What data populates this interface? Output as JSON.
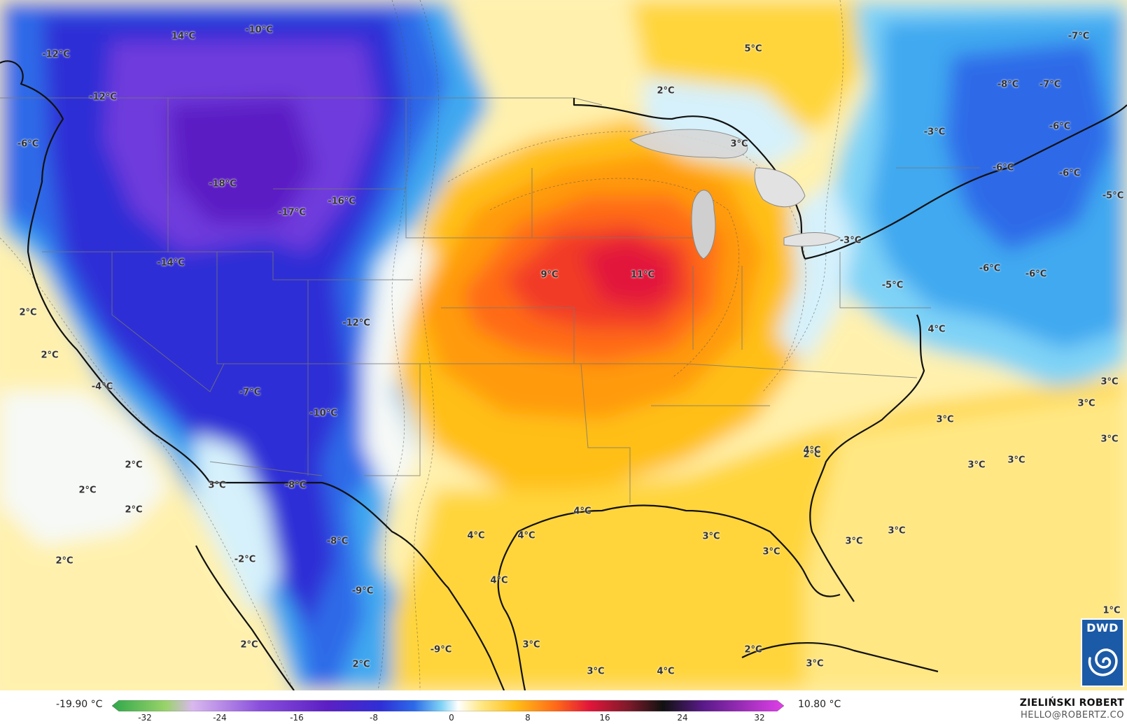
{
  "map": {
    "temperature_labels": [
      "14°C",
      "-10°C",
      "-12°C",
      "-12°C",
      "-6°C",
      "-18°C",
      "-16°C",
      "-17°C",
      "-14°C",
      "-12°C",
      "2°C",
      "2°C",
      "-4°C",
      "-7°C",
      "-10°C",
      "2°C",
      "2°C",
      "3°C",
      "-8°C",
      "2°C",
      "-8°C",
      "2°C",
      "-2°C",
      "-9°C",
      "-9°C",
      "2°C",
      "2°C",
      "5°C",
      "2°C",
      "3°C",
      "9°C",
      "11°C",
      "4°C",
      "4°C",
      "4°C",
      "4°C",
      "3°C",
      "3°C",
      "3°C",
      "3°C",
      "4°C",
      "-7°C",
      "-8°C",
      "-7°C",
      "-3°C",
      "-6°C",
      "-6°C",
      "-6°C",
      "-5°C",
      "-3°C",
      "-6°C",
      "-6°C",
      "-5°C",
      "4°C",
      "3°C",
      "3°C",
      "3°C",
      "3°C",
      "3°C",
      "3°C",
      "3°C",
      "1°C",
      "3°C",
      "2°C",
      "2°C",
      "3°C",
      "4°C"
    ],
    "colors": {
      "deep_violet": "#5c1fc4",
      "violet": "#6f3bdc",
      "dark_blue": "#2f2fd6",
      "blue": "#2d6be8",
      "light_blue": "#3fa9f0",
      "cyan": "#7fd3f6",
      "pale_cyan": "#d6f1fb",
      "white": "#f6f9f6",
      "pale_yellow": "#fff1ad",
      "yellow": "#ffd53a",
      "orange_yellow": "#ffbf18",
      "orange": "#ff9a10",
      "dark_orange": "#ff6a18",
      "red": "#f23a26",
      "crimson": "#e2163a"
    }
  },
  "logo": {
    "text": "DWD",
    "icon": "dwd-swirl-icon"
  },
  "legend": {
    "min_label": "-19.90 °C",
    "max_label": "10.80 °C",
    "ticks": [
      "-32",
      "-24",
      "-16",
      "-8",
      "0",
      "8",
      "16",
      "24",
      "32"
    ]
  },
  "credit": {
    "name": "ZIELIŃSKI ROBERT",
    "email": "HELLO@ROBERTZ.CO"
  }
}
